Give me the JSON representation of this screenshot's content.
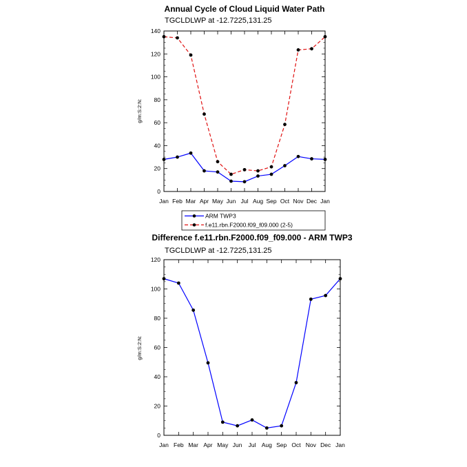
{
  "chart_data": [
    {
      "type": "line",
      "title": "Annual Cycle of Cloud Liquid Water Path",
      "subtitle": "TGCLDLWP at -12.7225,131.25",
      "xlabel": "",
      "ylabel": "g/m:S:2:N:",
      "categories": [
        "Jan",
        "Feb",
        "Mar",
        "Apr",
        "May",
        "Jun",
        "Jul",
        "Aug",
        "Sep",
        "Oct",
        "Nov",
        "Dec",
        "Jan"
      ],
      "ylim": [
        0,
        140
      ],
      "yticks": [
        0,
        20,
        40,
        60,
        80,
        100,
        120,
        140
      ],
      "grid": false,
      "legend_position": "bottom",
      "series": [
        {
          "name": "ARM TWP3",
          "color": "#0000ff",
          "dash": "solid",
          "values": [
            28,
            30,
            33.5,
            18,
            17,
            9,
            8.5,
            13.5,
            15,
            22.5,
            30.5,
            28.5,
            28
          ]
        },
        {
          "name": "f.e11.rbn.F2000.f09_f09.000 (2-5)",
          "color": "#e01010",
          "dash": "dashed",
          "values": [
            135,
            134,
            119,
            67.5,
            26,
            15,
            19,
            18,
            21.5,
            58.5,
            123.5,
            124.5,
            135
          ]
        }
      ]
    },
    {
      "type": "line",
      "title": "Difference f.e11.rbn.F2000.f09_f09.000 - ARM TWP3",
      "subtitle": "TGCLDLWP at -12.7225,131.25",
      "xlabel": "",
      "ylabel": "g/m:S:2:N:",
      "categories": [
        "Jan",
        "Feb",
        "Mar",
        "Apr",
        "May",
        "Jun",
        "Jul",
        "Aug",
        "Sep",
        "Oct",
        "Nov",
        "Dec",
        "Jan"
      ],
      "ylim": [
        0,
        120
      ],
      "yticks": [
        0,
        20,
        40,
        60,
        80,
        100,
        120
      ],
      "grid": false,
      "series": [
        {
          "color": "#0000ff",
          "dash": "solid",
          "values": [
            107,
            104,
            85.5,
            49.5,
            9,
            6.5,
            10.5,
            5,
            6.5,
            36,
            93,
            95.5,
            107
          ]
        }
      ]
    }
  ]
}
